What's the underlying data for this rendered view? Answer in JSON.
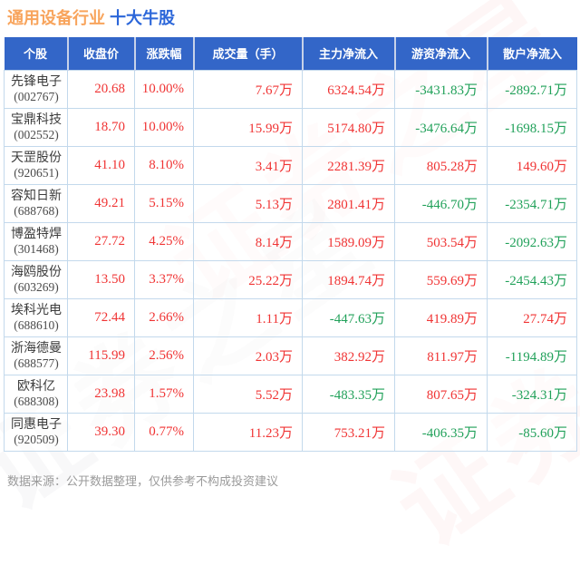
{
  "title": {
    "industry": "通用设备行业",
    "topic": "十大牛股"
  },
  "watermark": "证券之星",
  "footer": {
    "note": "数据来源：公开数据整理，仅供参考不构成投资建议"
  },
  "colors": {
    "up": "#f03434",
    "down": "#21a15a",
    "header_bg": "#3366c8",
    "title_industry": "#f8a45c",
    "title_topic": "#2b66d9",
    "grid": "#c3d9ec"
  },
  "chart_data": {
    "type": "table",
    "title": "通用设备行业 十大牛股",
    "columns": [
      "个股",
      "收盘价",
      "涨跌幅",
      "成交量（手）",
      "主力净流入",
      "游资净流入",
      "散户净流入"
    ],
    "rows": [
      {
        "name": "先锋电子",
        "code": "(002767)",
        "close": "20.68",
        "change_pct": "10.00%",
        "volume": "7.67万",
        "main_net_inflow": "6324.54万",
        "speculative_net_inflow": "-3431.83万",
        "retail_net_inflow": "-2892.71万"
      },
      {
        "name": "宝鼎科技",
        "code": "(002552)",
        "close": "18.70",
        "change_pct": "10.00%",
        "volume": "15.99万",
        "main_net_inflow": "5174.80万",
        "speculative_net_inflow": "-3476.64万",
        "retail_net_inflow": "-1698.15万"
      },
      {
        "name": "天罡股份",
        "code": "(920651)",
        "close": "41.10",
        "change_pct": "8.10%",
        "volume": "3.41万",
        "main_net_inflow": "2281.39万",
        "speculative_net_inflow": "805.28万",
        "retail_net_inflow": "149.60万"
      },
      {
        "name": "容知日新",
        "code": "(688768)",
        "close": "49.21",
        "change_pct": "5.15%",
        "volume": "5.13万",
        "main_net_inflow": "2801.41万",
        "speculative_net_inflow": "-446.70万",
        "retail_net_inflow": "-2354.71万"
      },
      {
        "name": "博盈特焊",
        "code": "(301468)",
        "close": "27.72",
        "change_pct": "4.25%",
        "volume": "8.14万",
        "main_net_inflow": "1589.09万",
        "speculative_net_inflow": "503.54万",
        "retail_net_inflow": "-2092.63万"
      },
      {
        "name": "海鸥股份",
        "code": "(603269)",
        "close": "13.50",
        "change_pct": "3.37%",
        "volume": "25.22万",
        "main_net_inflow": "1894.74万",
        "speculative_net_inflow": "559.69万",
        "retail_net_inflow": "-2454.43万"
      },
      {
        "name": "埃科光电",
        "code": "(688610)",
        "close": "72.44",
        "change_pct": "2.66%",
        "volume": "1.11万",
        "main_net_inflow": "-447.63万",
        "speculative_net_inflow": "419.89万",
        "retail_net_inflow": "27.74万"
      },
      {
        "name": "浙海德曼",
        "code": "(688577)",
        "close": "115.99",
        "change_pct": "2.56%",
        "volume": "2.03万",
        "main_net_inflow": "382.92万",
        "speculative_net_inflow": "811.97万",
        "retail_net_inflow": "-1194.89万"
      },
      {
        "name": "欧科亿",
        "code": "(688308)",
        "close": "23.98",
        "change_pct": "1.57%",
        "volume": "5.52万",
        "main_net_inflow": "-483.35万",
        "speculative_net_inflow": "807.65万",
        "retail_net_inflow": "-324.31万"
      },
      {
        "name": "同惠电子",
        "code": "(920509)",
        "close": "39.30",
        "change_pct": "0.77%",
        "volume": "11.23万",
        "main_net_inflow": "753.21万",
        "speculative_net_inflow": "-406.35万",
        "retail_net_inflow": "-85.60万"
      }
    ]
  }
}
